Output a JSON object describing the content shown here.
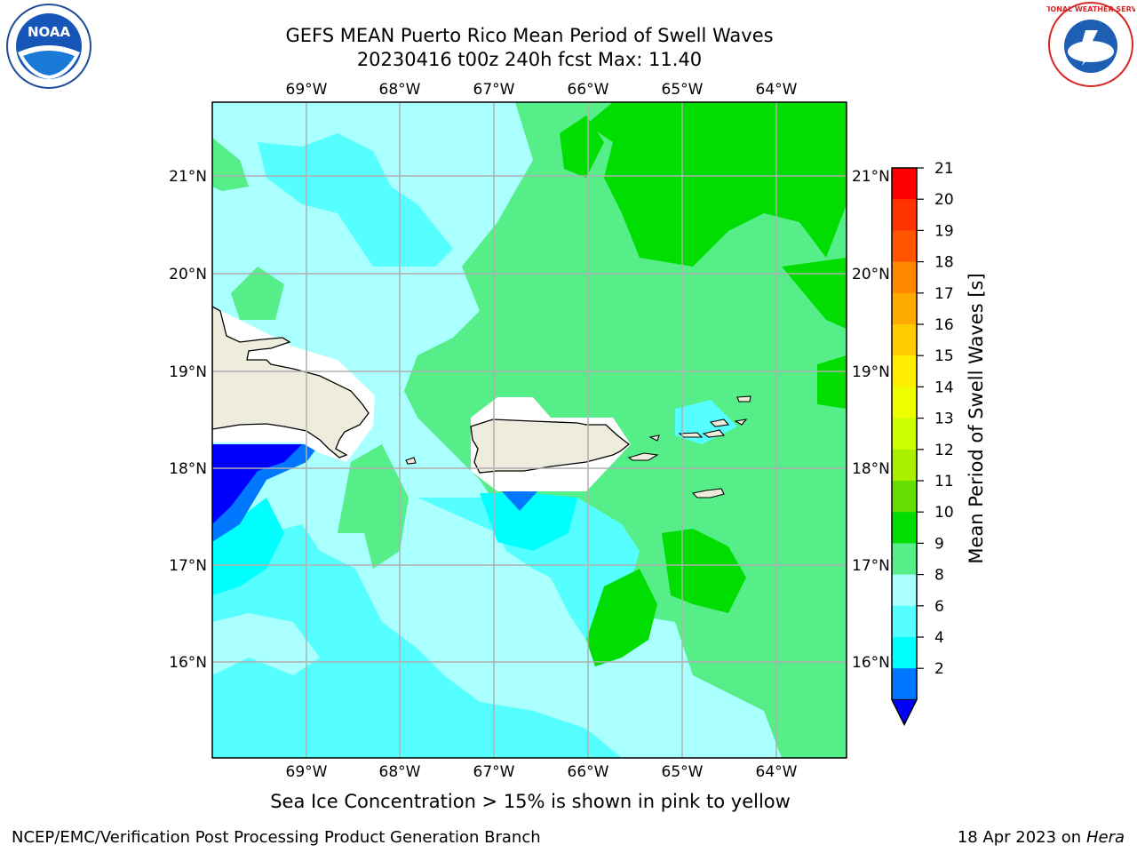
{
  "title_line1": "GEFS MEAN Puerto Rico Mean Period of Swell Waves",
  "title_line2": "20230416 t00z 240h fcst   Max: 11.40",
  "note": "Sea Ice Concentration > 15% is shown in pink to yellow",
  "footer_left": "NCEP/EMC/Verification Post Processing Product Generation Branch",
  "footer_right_date": "18 Apr 2023 on ",
  "footer_right_host": "Hera",
  "logos": {
    "left": "noaa-logo",
    "right": "nws-logo",
    "left_text": "NOAA",
    "right_text": "NATIONAL WEATHER SERVICE"
  },
  "map": {
    "lon_labels": [
      "69°W",
      "68°W",
      "67°W",
      "66°W",
      "65°W",
      "64°W"
    ],
    "lat_labels": [
      "21°N",
      "20°N",
      "19°N",
      "18°N",
      "17°N",
      "16°N"
    ],
    "land_color": "#eeecdc",
    "grid_color": "#b0b0b0"
  },
  "colorbar": {
    "label": "Mean Period of Swell Waves [s]",
    "ticks": [
      "21",
      "20",
      "19",
      "18",
      "17",
      "16",
      "15",
      "14",
      "13",
      "12",
      "11",
      "10",
      "9",
      "8",
      "6",
      "4",
      "2"
    ],
    "colors": [
      "#ff0000",
      "#ff3300",
      "#ff5500",
      "#ff8800",
      "#ffaa00",
      "#ffcc00",
      "#ffee00",
      "#eeff00",
      "#ccff00",
      "#aaee00",
      "#66dd00",
      "#00dd00",
      "#55ee88",
      "#aaffff",
      "#55ffff",
      "#00ffff",
      "#0077ff"
    ],
    "under_color": "#0000ff"
  }
}
